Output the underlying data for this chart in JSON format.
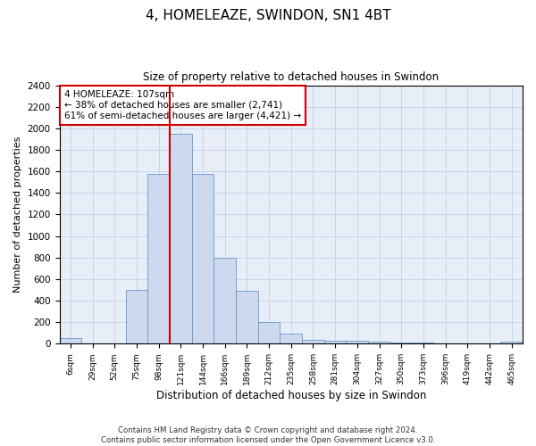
{
  "title": "4, HOMELEAZE, SWINDON, SN1 4BT",
  "subtitle": "Size of property relative to detached houses in Swindon",
  "xlabel": "Distribution of detached houses by size in Swindon",
  "ylabel": "Number of detached properties",
  "bar_color": "#ccd9ef",
  "bar_edge_color": "#6699cc",
  "grid_color": "#c8d4e8",
  "background_color": "#e8eef8",
  "bin_labels": [
    "6sqm",
    "29sqm",
    "52sqm",
    "75sqm",
    "98sqm",
    "121sqm",
    "144sqm",
    "166sqm",
    "189sqm",
    "212sqm",
    "235sqm",
    "258sqm",
    "281sqm",
    "304sqm",
    "327sqm",
    "350sqm",
    "373sqm",
    "396sqm",
    "419sqm",
    "442sqm",
    "465sqm"
  ],
  "bar_heights": [
    50,
    0,
    0,
    500,
    1580,
    1950,
    1580,
    800,
    490,
    200,
    90,
    35,
    30,
    25,
    20,
    15,
    10,
    5,
    5,
    5,
    20
  ],
  "ylim": [
    0,
    2400
  ],
  "yticks": [
    0,
    200,
    400,
    600,
    800,
    1000,
    1200,
    1400,
    1600,
    1800,
    2000,
    2200,
    2400
  ],
  "property_line_x": 4.5,
  "property_line_color": "#cc0000",
  "annotation_text": "4 HOMELEAZE: 107sqm\n← 38% of detached houses are smaller (2,741)\n61% of semi-detached houses are larger (4,421) →",
  "annotation_box_color": "#ffffff",
  "annotation_box_edge": "#cc0000",
  "footer_line1": "Contains HM Land Registry data © Crown copyright and database right 2024.",
  "footer_line2": "Contains public sector information licensed under the Open Government Licence v3.0."
}
